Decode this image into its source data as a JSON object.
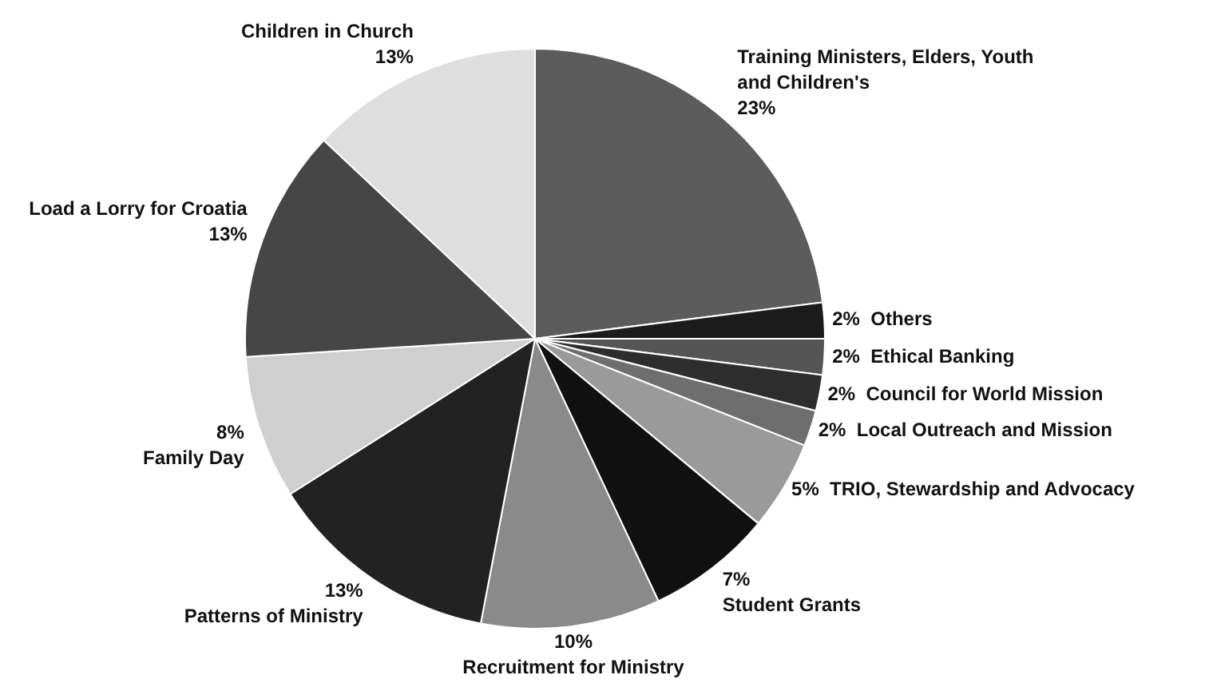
{
  "chart_data": {
    "type": "pie",
    "categories": [
      "Training Ministers, Elders, Youth and Children's",
      "Others",
      "Ethical Banking",
      "Council for World Mission",
      "Local Outreach and Mission",
      "TRIO, Stewardship and Advocacy",
      "Student Grants",
      "Recruitment for Ministry",
      "Patterns of Ministry",
      "Family Day",
      "Load a Lorry for Croatia",
      "Children in Church"
    ],
    "values": [
      23,
      2,
      2,
      2,
      2,
      5,
      7,
      10,
      13,
      8,
      13,
      13
    ],
    "colors": [
      "#5c5c5c",
      "#1c1c1c",
      "#555555",
      "#2e2e2e",
      "#6e6e6e",
      "#9a9a9a",
      "#111111",
      "#8a8a8a",
      "#222222",
      "#cfcfcf",
      "#464646",
      "#dedede"
    ],
    "value_labels": [
      "23%",
      "2%",
      "2%",
      "2%",
      "2%",
      "5%",
      "7%",
      "10%",
      "13%",
      "8%",
      "13%",
      "13%"
    ],
    "legend": false
  }
}
